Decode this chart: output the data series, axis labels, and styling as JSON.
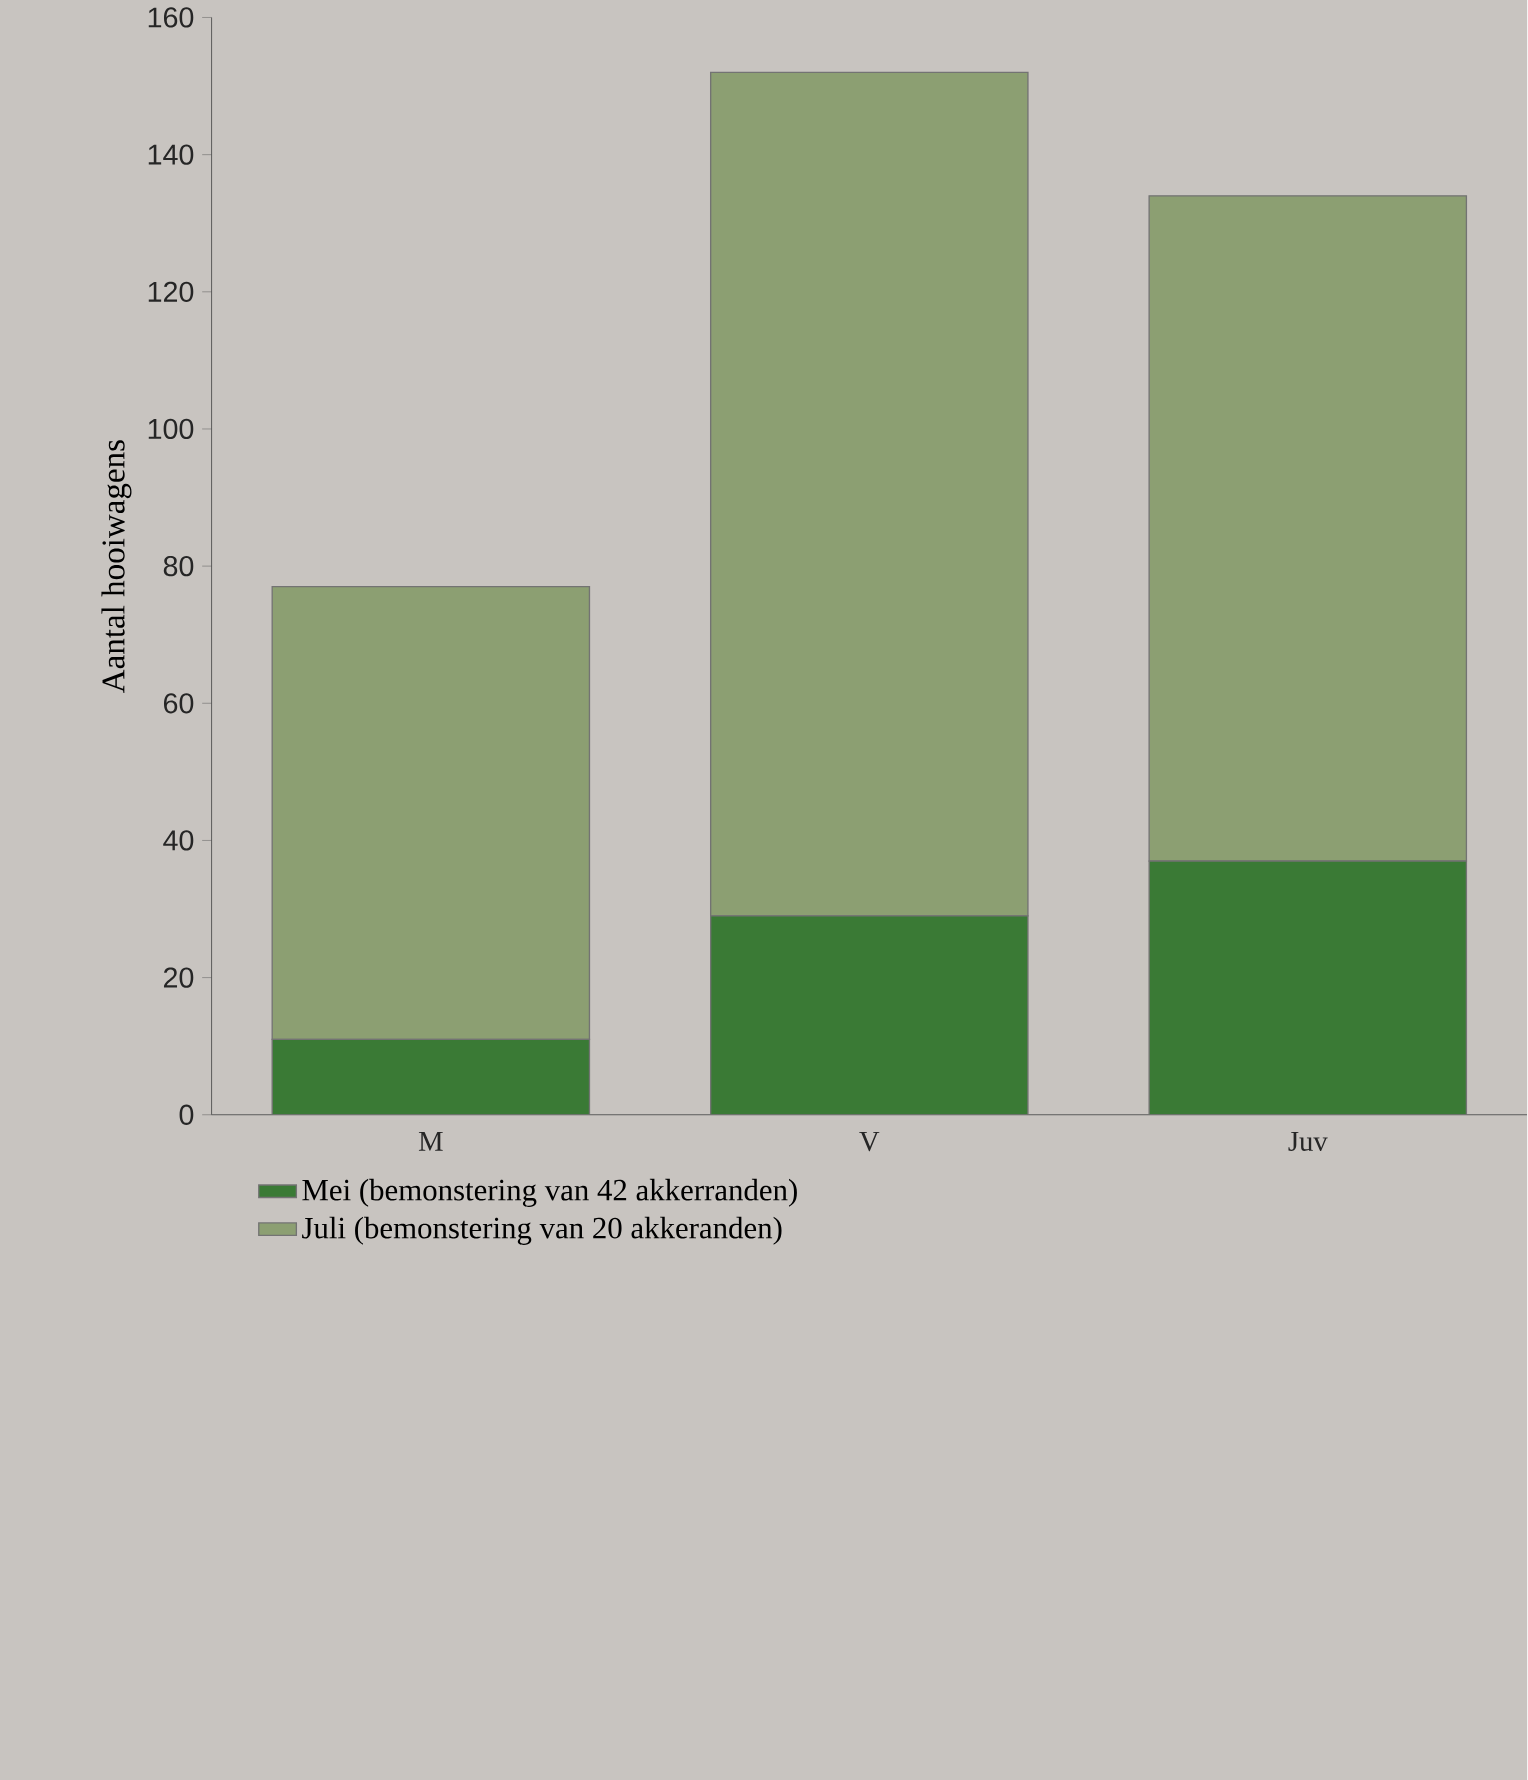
{
  "chart_data": {
    "type": "bar",
    "stacked": true,
    "ylabel": "Aantal hooiwagens",
    "categories": [
      "M",
      "V",
      "Juv"
    ],
    "series": [
      {
        "name": "Mei (bemonstering van 42 akkerranden)",
        "color": "#3a7a35",
        "values": [
          11,
          29,
          37
        ]
      },
      {
        "name": "Juli (bemonstering van 20 akkeranden)",
        "color": "#8c9f72",
        "values": [
          66,
          123,
          97
        ]
      }
    ],
    "ylim": [
      0,
      160
    ],
    "yticks": [
      0,
      20,
      40,
      60,
      80,
      100,
      120,
      140,
      160
    ],
    "grid": false,
    "legend": "bottom left"
  }
}
